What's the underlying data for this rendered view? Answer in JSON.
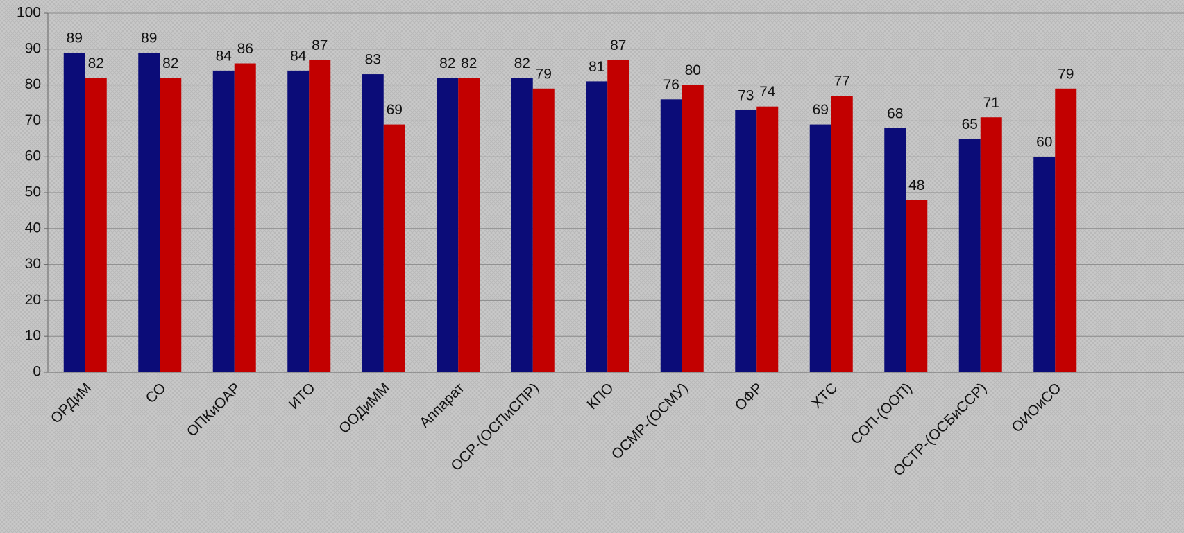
{
  "chart_data": {
    "type": "bar",
    "categories": [
      "ОРДиМ",
      "СО",
      "ОПКиОАР",
      "ИТО",
      "ООДиММ",
      "Аппарат",
      "ОСР-(ОСПиСПР)",
      "КПО",
      "ОСМР-(ОСМУ)",
      "ОФР",
      "ХТС",
      "СОП-(ООП)",
      "ОСТР-(ОСБиССР)",
      "ОИОиСО"
    ],
    "series": [
      {
        "color": "#0b0c78",
        "values": [
          89,
          89,
          84,
          84,
          83,
          82,
          82,
          81,
          76,
          73,
          69,
          68,
          65,
          60
        ]
      },
      {
        "color": "#c20000",
        "values": [
          82,
          82,
          86,
          87,
          69,
          82,
          79,
          87,
          80,
          74,
          77,
          48,
          71,
          79
        ]
      }
    ],
    "ylim": [
      0,
      100
    ],
    "yticks": [
      0,
      10,
      20,
      30,
      40,
      50,
      60,
      70,
      80,
      90,
      100
    ],
    "grid": true
  }
}
